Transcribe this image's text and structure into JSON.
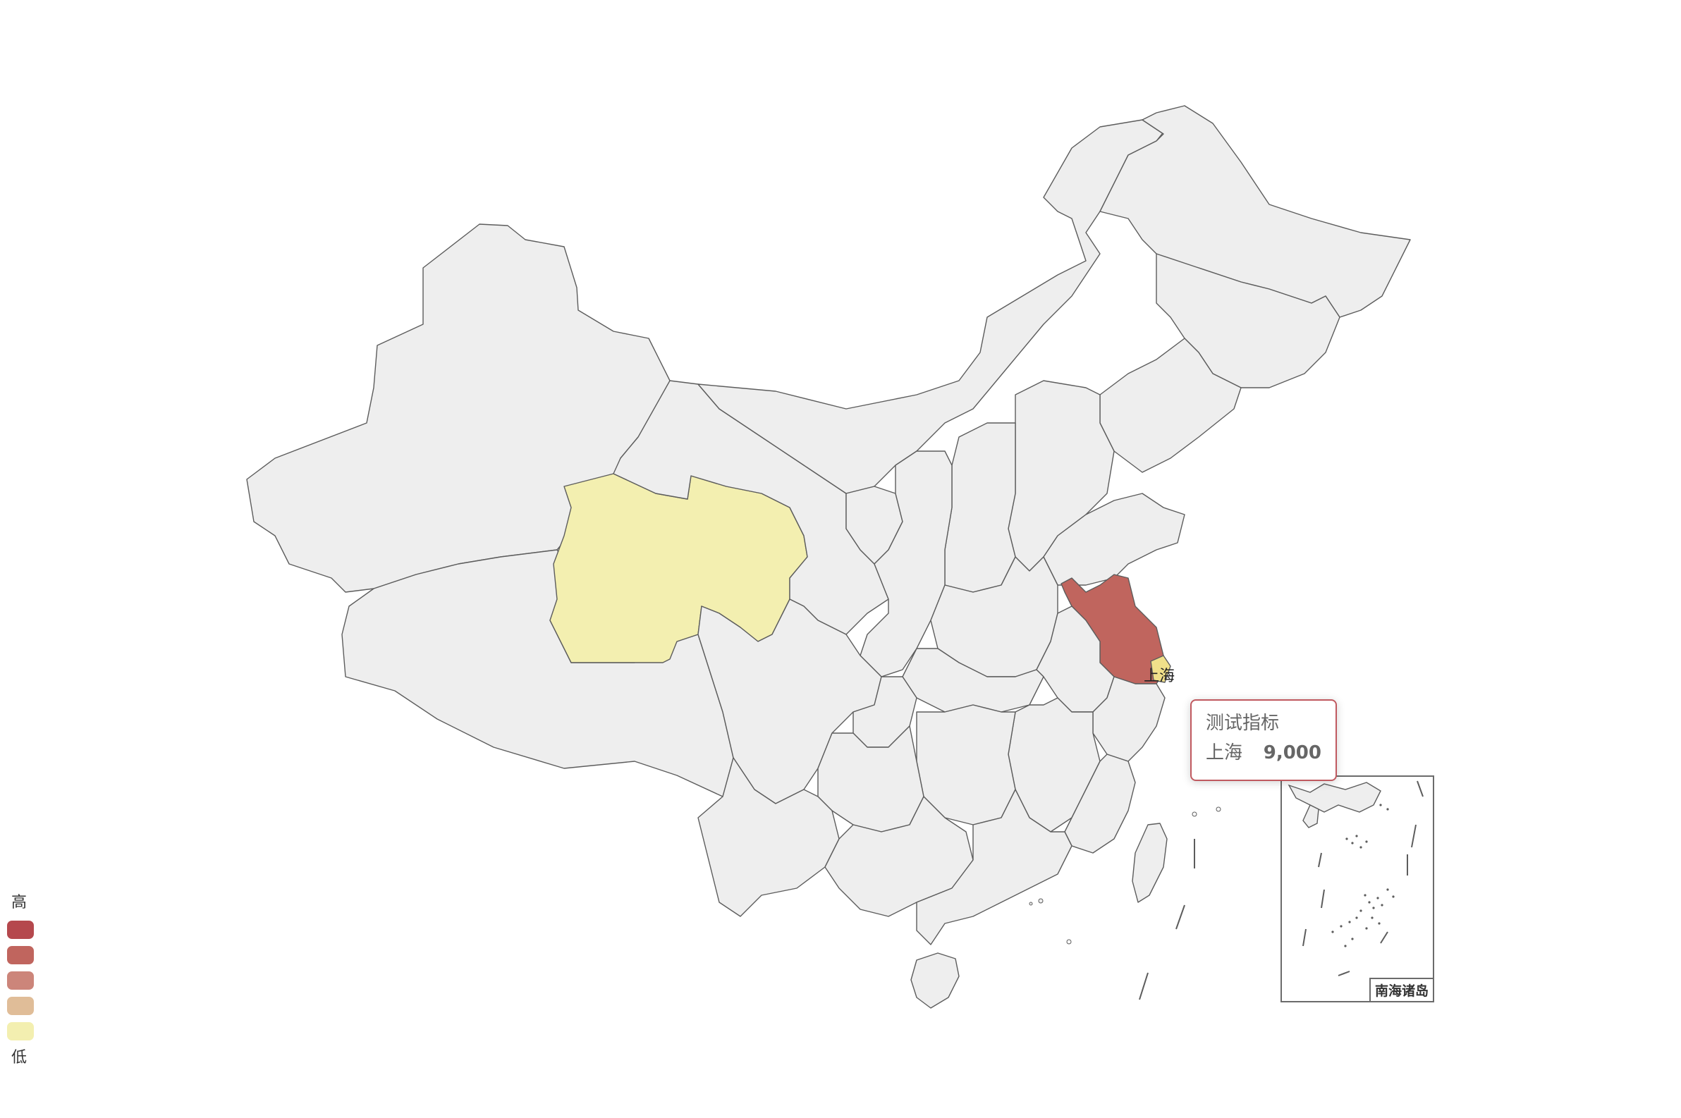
{
  "map": {
    "default_fill": "#eeeeee",
    "border_color": "#5c5c5c",
    "provinces": [
      {
        "name": "青海",
        "value_level": "低",
        "fill": "#f3efb0"
      },
      {
        "name": "江苏",
        "value_level": "高",
        "fill": "#c0655e"
      },
      {
        "name": "上海",
        "value": 9000,
        "fill": "#f0e08a"
      }
    ],
    "highlighted_label": "上海"
  },
  "legend": {
    "high_label": "高",
    "low_label": "低",
    "colors": [
      "#b5484d",
      "#c0655e",
      "#cc857a",
      "#e0bd98",
      "#f3efb0"
    ]
  },
  "tooltip": {
    "title": "测试指标",
    "name": "上海",
    "value": "9,000",
    "border_color": "#c0595f"
  },
  "inset": {
    "label": "南海诸岛"
  }
}
